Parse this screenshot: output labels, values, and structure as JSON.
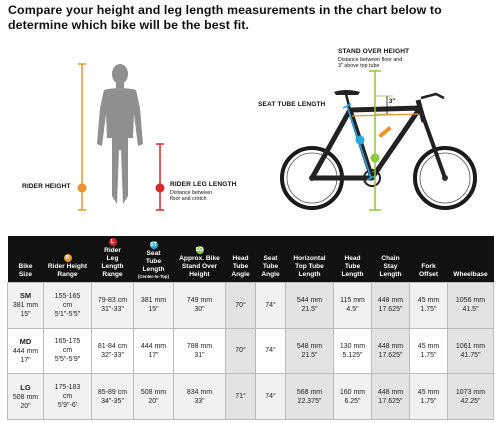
{
  "headline": "Compare your height and leg length measurements in the chart below to determine which bike will be the best fit.",
  "figure": {
    "rider_height_label": "RIDER HEIGHT",
    "rider_height_badge": "R",
    "rider_leg_length_label": "RIDER LEG LENGTH",
    "rider_leg_length_badge": "L",
    "rider_leg_length_desc": "Distance between\nfloor and crotch",
    "stand_over_label": "STAND OVER HEIGHT",
    "stand_over_desc": "Distance between floor and\n3\" above top tube",
    "seat_tube_label": "SEAT TUBE LENGTH",
    "three_inch": "3\"",
    "colors": {
      "orange": "#f0922b",
      "red": "#d8262b",
      "blue": "#2aa7df",
      "green": "#8dc63f",
      "figure_gray": "#8f8f8f"
    }
  },
  "table": {
    "headers": [
      {
        "badge": "",
        "label": "Bike\nSize",
        "note": ""
      },
      {
        "badge": "R",
        "label": "Rider Height\nRange",
        "note": ""
      },
      {
        "badge": "L",
        "label": "Rider\nLeg\nLength\nRange",
        "note": ""
      },
      {
        "badge": "ST",
        "label": "Seat\nTube\nLength",
        "note": "(Center-to-Top)"
      },
      {
        "badge": "SO",
        "label": "Approx. Bike\nStand Over\nHeight",
        "note": ""
      },
      {
        "badge": "",
        "label": "Head\nTube\nAngle",
        "note": ""
      },
      {
        "badge": "",
        "label": "Seat\nTube\nAngle",
        "note": ""
      },
      {
        "badge": "",
        "label": "Horizontal\nTop Tube\nLength",
        "note": ""
      },
      {
        "badge": "",
        "label": "Head\nTube\nLength",
        "note": ""
      },
      {
        "badge": "",
        "label": "Chain\nStay\nLength",
        "note": ""
      },
      {
        "badge": "",
        "label": "Fork\nOffset",
        "note": ""
      },
      {
        "badge": "",
        "label": "Wheelbase",
        "note": ""
      }
    ],
    "rows": [
      {
        "size": "SM",
        "size_mm": "381 mm",
        "size_in": "15\"",
        "cells": [
          "155-165\ncm\n5'1\"-5'5\"",
          "79-83 cm\n31\"-33\"",
          "381 mm\n15\"",
          "749 mm\n30\"",
          "70°",
          "74°",
          "544 mm\n21.5\"",
          "115 mm\n4.5\"",
          "448 mm\n17.625\"",
          "45 mm\n1.75\"",
          "1056 mm\n41.5\""
        ]
      },
      {
        "size": "MD",
        "size_mm": "444 mm",
        "size_in": "17\"",
        "cells": [
          "165-175\ncm\n5'5\"-5'9\"",
          "81-84 cm\n32\"-33\"",
          "444 mm\n17\"",
          "788 mm\n31\"",
          "70°",
          "74°",
          "548 mm\n21.5\"",
          "130 mm\n5.125\"",
          "448 mm\n17.625\"",
          "45 mm\n1.75\"",
          "1061 mm\n41.75\""
        ]
      },
      {
        "size": "LG",
        "size_mm": "508 mm",
        "size_in": "20\"",
        "cells": [
          "175-183\ncm\n5'9\"-6'",
          "85-89 cm\n34\"-35\"",
          "508 mm\n20\"",
          "834 mm\n33\"",
          "71°",
          "74°",
          "568 mm\n22.375\"",
          "160 mm\n6.25\"",
          "448 mm\n17.625\"",
          "45 mm\n1.75\"",
          "1073 mm\n42.25\""
        ]
      }
    ]
  }
}
